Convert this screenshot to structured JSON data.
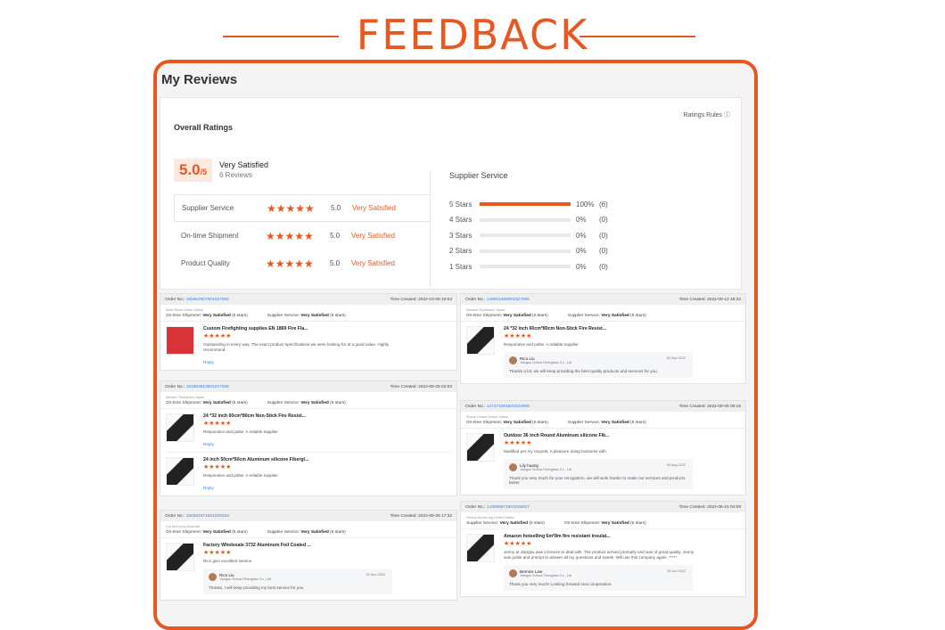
{
  "header": {
    "title": "FEEDBACK"
  },
  "page_title": "My Reviews",
  "overall": {
    "title": "Overall Ratings",
    "rules": "Ratings Rules",
    "help_icon": "question-circle-icon",
    "score": "5.0",
    "out_of": "/5",
    "label": "Very Satisfied",
    "count": "6 Reviews",
    "rows": [
      {
        "name": "Supplier Service",
        "stars": 5,
        "value": "5.0",
        "label": "Very Satisfied"
      },
      {
        "name": "On-time Shipment",
        "stars": 5,
        "value": "5.0",
        "label": "Very Satisfied"
      },
      {
        "name": "Product Quality",
        "stars": 5,
        "value": "5.0",
        "label": "Very Satisfied"
      }
    ],
    "breakdown_title": "Supplier Service",
    "breakdown": [
      {
        "label": "5 Stars",
        "percent": 100,
        "pct": "100%",
        "count": "(6)"
      },
      {
        "label": "4 Stars",
        "percent": 0,
        "pct": "0%",
        "count": "(0)"
      },
      {
        "label": "3 Stars",
        "percent": 0,
        "pct": "0%",
        "count": "(0)"
      },
      {
        "label": "2 Stars",
        "percent": 0,
        "pct": "0%",
        "count": "(0)"
      },
      {
        "label": "1 Stars",
        "percent": 0,
        "pct": "0%",
        "count": "(0)"
      }
    ]
  },
  "accent": "#e8571f",
  "stars_glyph": "★★★★★",
  "labels": {
    "order": "Order No.:",
    "time": "Time Created:",
    "reply": "Reply"
  },
  "reviews": [
    {
      "order": "150602607501027082",
      "time": "2022-10-09 10:03",
      "buyer": "Mark Rees United States",
      "sat1": "On-time Shipment:",
      "sat1v": "Very Satisfied",
      "sat1s": "(5 stars)",
      "sat2": "Supplier Service:",
      "sat2v": "Very Satisfied",
      "sat2s": "(5 stars)",
      "items": [
        {
          "name": "Custom Firefighting supplies EN 1869 Fire Fla...",
          "text": "Outstanding in every way. The exact product specifications we were looking for at a good value. Highly recommend."
        }
      ]
    },
    {
      "order": "151853610001027286",
      "time": "2022-09-29 02:03",
      "buyer": "Masami Tsukahara Japan",
      "sat1": "On-time Shipment:",
      "sat1v": "Very Satisfied",
      "sat1s": "(5 stars)",
      "sat2": "Supplier Service:",
      "sat2v": "Very Satisfied",
      "sat2s": "(5 stars)",
      "items": [
        {
          "name": "24 *32 inch 60cm*80cm Non-Stick Fire Resist...",
          "text": "Responsive and polite. A reliable supplier."
        },
        {
          "name": "24 inch 50cm*50cm Aluminum silicone Fibergl...",
          "text": "Responsive and polite. A reliable supplier."
        }
      ]
    },
    {
      "order": "150321971501028194",
      "time": "2022-09-25 17:32",
      "buyer": "Cal McCooey Australia",
      "sat1": "On-time Shipment:",
      "sat1v": "Very Satisfied",
      "sat1s": "(5 stars)",
      "sat2": "Supplier Service:",
      "sat2v": "Very Satisfied",
      "sat2s": "(5 stars)",
      "items": [
        {
          "name": "Factory Wholesale 3732 Aluminum Foil Coated ...",
          "text": "Rico give excellent service"
        }
      ],
      "reply": {
        "name": "Rico Liu",
        "company": "Jiangsu Suhua Fiberglass Co., Ltd",
        "date": "25 Sep 2022",
        "message": "Thanks, I will keep providing my best service for you"
      }
    },
    {
      "order": "149001456001027296",
      "time": "2022-09-13 18:33",
      "buyer": "Masami Tsukahara Japan",
      "sat1": "On-time Shipment:",
      "sat1v": "Very Satisfied",
      "sat1s": "(5 stars)",
      "sat2": "Supplier Service:",
      "sat2v": "Very Satisfied",
      "sat2s": "(5 stars)",
      "items": [
        {
          "name": "24 *32 inch 60cm*80cm Non-Stick Fire Resist...",
          "text": "Responsive and polite. A reliable supplier."
        }
      ],
      "reply": {
        "name": "Rico Liu",
        "company": "Jiangsu Suhua Fiberglass Co., Ltd",
        "date": "25 Sep 2022",
        "message": "Thanks a lot, we will keep providing the best quality products and services for you."
      }
    },
    {
      "order": "147174091501022699",
      "time": "2022-08-06 09:15",
      "buyer": "Shane Hosea United States",
      "sat1": "On-time Shipment:",
      "sat1v": "Very Satisfied",
      "sat1s": "(5 stars)",
      "sat2": "Supplier Service:",
      "sat2v": "Very Satisfied",
      "sat2s": "(5 stars)",
      "items": [
        {
          "name": "Outdoor 36 inch Round Aluminum silicone Fib...",
          "text": "Modified per my request. A pleasure doing business with."
        }
      ],
      "reply": {
        "name": "Lily huang",
        "company": "Jiangsu Suhua Fiberglass Co., Ltd",
        "date": "04 Aug 2022",
        "message": "Thank you very much for your recognition, we will work harder to make our services and products better"
      }
    },
    {
      "order": "143099871501028027",
      "time": "2022-06-15 04:09",
      "buyer": "Patrick Armstrong United States",
      "sat1": "Supplier Service:",
      "sat1v": "Very Satisfied",
      "sat1s": "(5 stars)",
      "sat2": "On-time Shipment:",
      "sat2v": "Very Satisfied",
      "sat2s": "(5 stars)",
      "items": [
        {
          "name": "Amazon hotselling 6m*8m fire resistant insulat...",
          "text": "Jenny at Jiangsu was a breeze to deal with. The product arrived promptly and was of great quality. Jenny was polite and prompt to answer all my questions and needs. Will use this company again. *****"
        }
      ],
      "reply": {
        "name": "Bernice Law",
        "company": "Jiangsu Suhua Fiberglass Co., Ltd",
        "date": "15 Jun 2022",
        "message": "Thank you very much! Looking forward next cooperation."
      }
    }
  ]
}
